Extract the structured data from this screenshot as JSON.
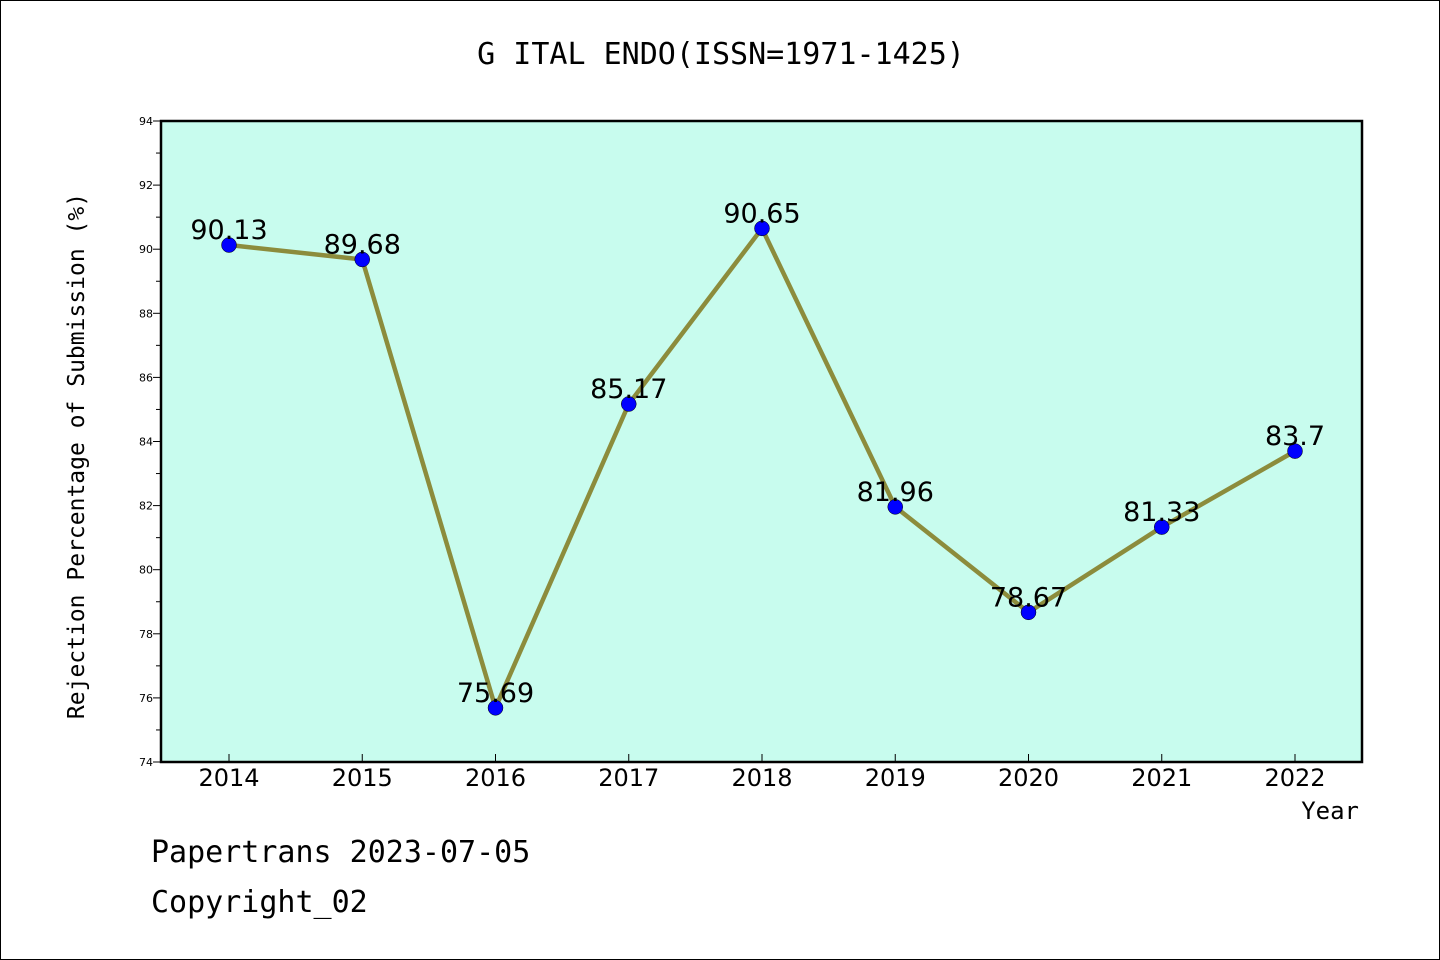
{
  "chart_data": {
    "type": "line",
    "title": "G ITAL ENDO(ISSN=1971-1425)",
    "xlabel": "Year",
    "ylabel": "Rejection Percentage of Submission (%)",
    "categories": [
      "2014",
      "2015",
      "2016",
      "2017",
      "2018",
      "2019",
      "2020",
      "2021",
      "2022"
    ],
    "values": [
      90.13,
      89.68,
      75.69,
      85.17,
      90.65,
      81.96,
      78.67,
      81.33,
      83.7
    ],
    "data_labels": [
      "90.13",
      "89.68",
      "75.69",
      "85.17",
      "90.65",
      "81.96",
      "78.67",
      "81.33",
      "83.7"
    ],
    "ylim": [
      74,
      94
    ],
    "yticks": [
      "74",
      "76",
      "78",
      "80",
      "82",
      "84",
      "86",
      "88",
      "90",
      "92",
      "94"
    ],
    "grid": false,
    "legend": "none",
    "colors": {
      "plot_background": "#c8fcee",
      "line": "#8c8c3c",
      "marker": "#0000ff"
    }
  },
  "footer": {
    "line1": "Papertrans 2023-07-05",
    "line2": "Copyright_02"
  }
}
